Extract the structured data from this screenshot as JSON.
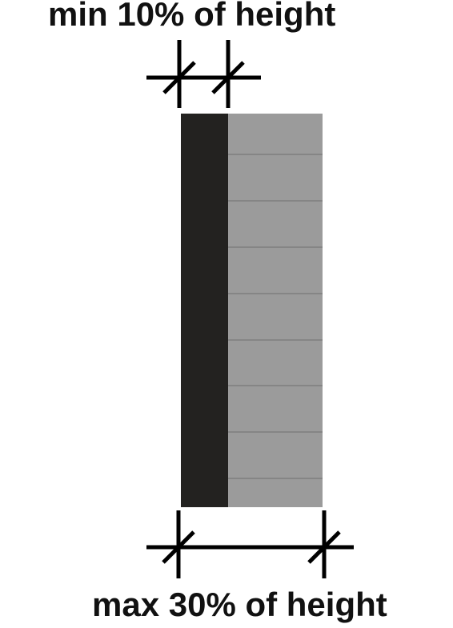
{
  "labels": {
    "top": "min 10% of height",
    "bottom": "max 30% of height"
  },
  "colors": {
    "dark_stripe": "#232220",
    "light_panel": "#9b9b9b",
    "panel_lines": "#6f6f6f",
    "dimension_lines": "#000000",
    "text": "#111111"
  }
}
